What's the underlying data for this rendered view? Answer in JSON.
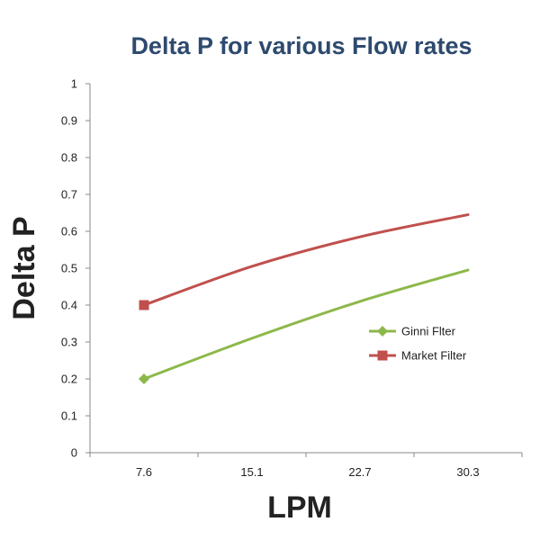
{
  "chart_data": {
    "type": "line",
    "title": "Delta P for various Flow rates",
    "xlabel": "LPM",
    "ylabel": "Delta P",
    "categories": [
      "7.6",
      "15.1",
      "22.7",
      "30.3"
    ],
    "yticks": [
      "0",
      "0.1",
      "0.2",
      "0.3",
      "0.4",
      "0.5",
      "0.6",
      "0.7",
      "0.8",
      "0.9",
      "1"
    ],
    "ylim": [
      0,
      1
    ],
    "grid": false,
    "legend_position": "right",
    "series": [
      {
        "name": "Ginni Flter",
        "marker": "diamond",
        "color": "#8DB84A",
        "values": [
          0.2,
          0.31,
          0.41,
          0.495
        ],
        "marker_on": [
          true,
          false,
          false,
          false
        ]
      },
      {
        "name": "Market Filter",
        "marker": "square",
        "color": "#C0504D",
        "values": [
          0.4,
          0.505,
          0.585,
          0.645
        ],
        "marker_on": [
          true,
          false,
          false,
          false
        ]
      }
    ],
    "colors": {
      "title": "#2E4A6E",
      "axis": "#888888",
      "label": "#222222"
    }
  }
}
